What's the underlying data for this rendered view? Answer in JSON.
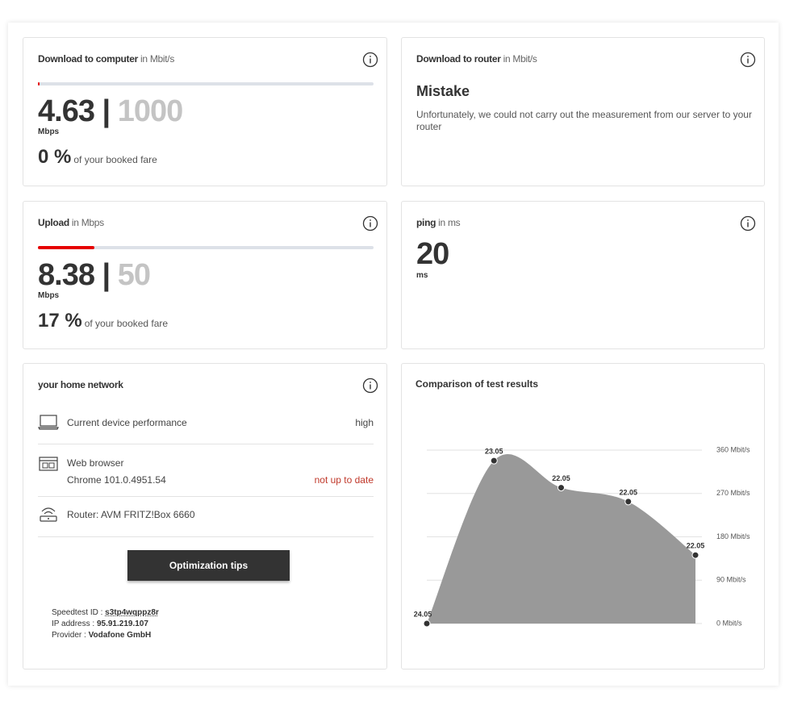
{
  "download_computer": {
    "title": "Download to computer",
    "unit": "in Mbit/s",
    "value": 4.63,
    "separator": "|",
    "max": 1000,
    "value_unit": "Mbps",
    "percent": "0 %",
    "percent_note": "of your booked fare"
  },
  "download_router": {
    "title": "Download to router",
    "unit": "in Mbit/s",
    "heading": "Mistake",
    "message": "Unfortunately, we could not carry out the measurement from our server to your router"
  },
  "upload": {
    "title": "Upload",
    "unit": "in Mbps",
    "value": 8.38,
    "separator": "|",
    "max": 50,
    "value_unit": "Mbps",
    "percent": "17 %",
    "percent_note": "of your booked fare"
  },
  "ping": {
    "title": "ping",
    "unit": "in ms",
    "value": 20,
    "value_unit": "ms"
  },
  "home_network": {
    "title": "your home network",
    "items": [
      {
        "label": "Current device performance",
        "status": "high"
      },
      {
        "label": "Web browser",
        "detail": "Chrome 101.0.4951.54",
        "status": "not up to date"
      },
      {
        "label": "Router: AVM FRITZ!Box 6660"
      }
    ],
    "button": "Optimization tips",
    "info": [
      {
        "label": "Speedtest ID :",
        "value": "s3tp4wqppz8r"
      },
      {
        "label": "IP address :",
        "value": "95.91.219.107"
      },
      {
        "label": "Provider :",
        "value": "Vodafone GmbH"
      }
    ]
  },
  "chart_data": {
    "type": "area",
    "title": "Comparison of test results",
    "categories": [
      "24.05",
      "23.05",
      "22.05",
      "22.05",
      "22.05"
    ],
    "values": [
      0,
      338,
      282,
      253,
      142
    ],
    "color": "#999999",
    "ylim": [
      0,
      360
    ],
    "yticks": [
      {
        "value": 0,
        "label": "0 Mbit/s"
      },
      {
        "value": 90,
        "label": "90 Mbit/s"
      },
      {
        "value": 180,
        "label": "180 Mbit/s"
      },
      {
        "value": 270,
        "label": "270 Mbit/s"
      },
      {
        "value": 360,
        "label": "360 Mbit/s"
      }
    ],
    "grid": true
  }
}
